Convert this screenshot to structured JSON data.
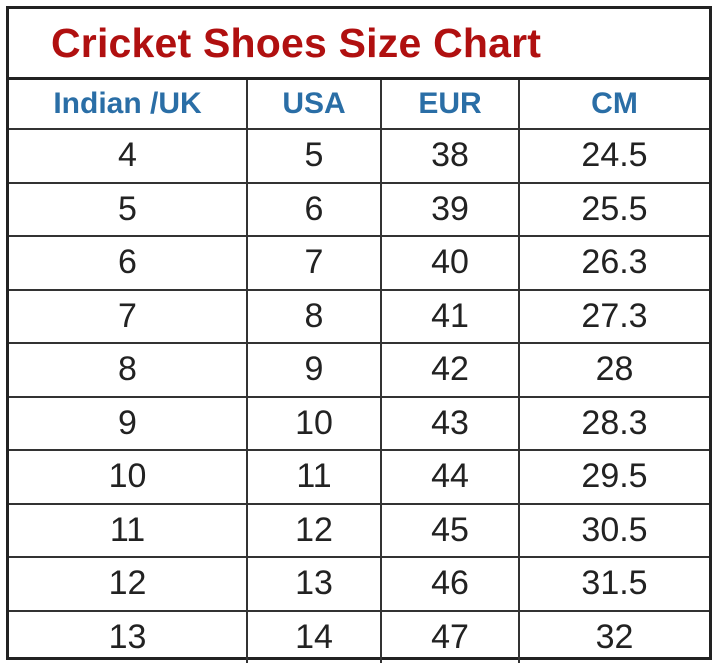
{
  "title": "Cricket Shoes Size Chart",
  "colors": {
    "title": "#b01010",
    "header": "#2a6ea6",
    "text": "#222222"
  },
  "columns": [
    "Indian /UK",
    "USA",
    "EUR",
    "CM"
  ],
  "rows": [
    [
      "4",
      "5",
      "38",
      "24.5"
    ],
    [
      "5",
      "6",
      "39",
      "25.5"
    ],
    [
      "6",
      "7",
      "40",
      "26.3"
    ],
    [
      "7",
      "8",
      "41",
      "27.3"
    ],
    [
      "8",
      "9",
      "42",
      "28"
    ],
    [
      "9",
      "10",
      "43",
      "28.3"
    ],
    [
      "10",
      "11",
      "44",
      "29.5"
    ],
    [
      "11",
      "12",
      "45",
      "30.5"
    ],
    [
      "12",
      "13",
      "46",
      "31.5"
    ],
    [
      "13",
      "14",
      "47",
      "32"
    ]
  ]
}
